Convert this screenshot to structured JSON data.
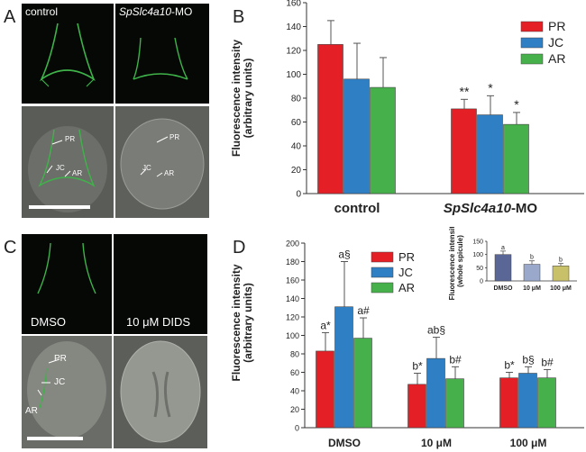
{
  "panels": {
    "A": {
      "letter": "A",
      "labels": {
        "control": "control",
        "morphant_italic": "SpSlc4a10",
        "morphant_suffix": "-MO"
      },
      "annotations": [
        "PR",
        "JC",
        "AR",
        "PR",
        "JC",
        "AR"
      ]
    },
    "C": {
      "letter": "C",
      "labels": {
        "dmso": "DMSO",
        "dids": "10 μM DIDS"
      },
      "annotations": [
        "PR",
        "JC",
        "AR"
      ]
    },
    "B": {
      "letter": "B"
    },
    "D": {
      "letter": "D"
    }
  },
  "colors": {
    "PR": "#e41f26",
    "JC": "#2f7fc4",
    "AR": "#46b14b",
    "inset_dmso": "#5a6696",
    "inset_treated": "#9aa8cc",
    "inset_100": "#c9c06a"
  },
  "chart_data": [
    {
      "id": "B",
      "type": "bar",
      "ylabel": "Fluorescence intensity\n(arbitrary units)",
      "ylim": [
        0,
        160
      ],
      "yticks": [
        0,
        20,
        40,
        60,
        80,
        100,
        120,
        140,
        160
      ],
      "categories": [
        {
          "label": "control",
          "italic": "",
          "suffix": ""
        },
        {
          "label": "",
          "italic": "SpSlc4a10",
          "suffix": "-MO"
        }
      ],
      "series": [
        {
          "name": "PR",
          "values": [
            125,
            71
          ],
          "errors": [
            20,
            8
          ],
          "sig": [
            "",
            "**"
          ]
        },
        {
          "name": "JC",
          "values": [
            96,
            66
          ],
          "errors": [
            30,
            16
          ],
          "sig": [
            "",
            "*"
          ]
        },
        {
          "name": "AR",
          "values": [
            89,
            58
          ],
          "errors": [
            25,
            10
          ],
          "sig": [
            "",
            "*"
          ]
        }
      ],
      "legend": "top-right"
    },
    {
      "id": "D",
      "type": "bar",
      "ylabel": "Fluorescence intensity\n(arbitrary units)",
      "ylim": [
        0,
        200
      ],
      "yticks": [
        0,
        20,
        40,
        60,
        80,
        100,
        120,
        140,
        160,
        180,
        200
      ],
      "categories": [
        "DMSO",
        "10 μM",
        "100 μM"
      ],
      "series": [
        {
          "name": "PR",
          "values": [
            83,
            47,
            54
          ],
          "errors": [
            20,
            12,
            6
          ],
          "sig": [
            "a*",
            "b*",
            "b*"
          ]
        },
        {
          "name": "JC",
          "values": [
            131,
            75,
            59
          ],
          "errors": [
            49,
            23,
            7
          ],
          "sig": [
            "a§",
            "ab§",
            "b§"
          ]
        },
        {
          "name": "AR",
          "values": [
            97,
            53,
            54
          ],
          "errors": [
            22,
            13,
            9
          ],
          "sig": [
            "a#",
            "b#",
            "b#"
          ]
        }
      ],
      "legend": "top-center",
      "inset": {
        "type": "bar",
        "ylabel": "Fluorescence intensity\n(whole spicule)",
        "ylim": [
          0,
          150
        ],
        "yticks": [
          0,
          50,
          100,
          150
        ],
        "categories": [
          "DMSO",
          "10 μM",
          "100 μM"
        ],
        "values": [
          100,
          63,
          57
        ],
        "errors": [
          13,
          13,
          9
        ],
        "sig": [
          "a",
          "b",
          "b"
        ]
      }
    }
  ]
}
